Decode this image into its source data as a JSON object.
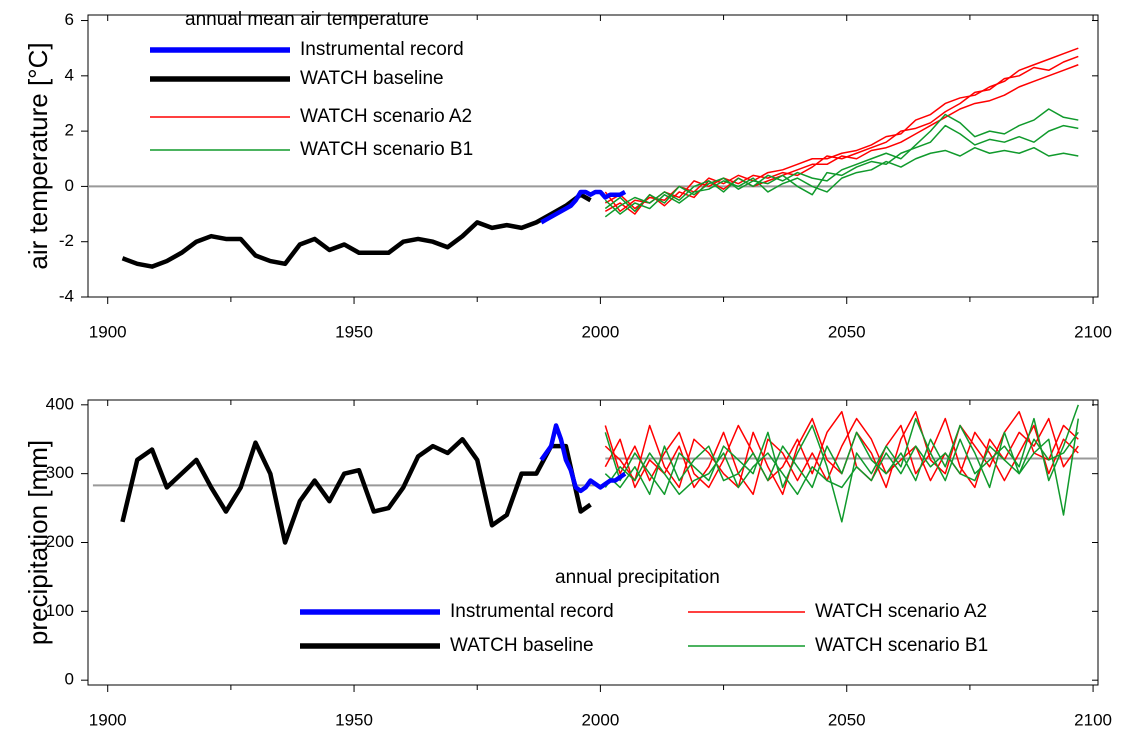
{
  "chart_data": [
    {
      "type": "line",
      "title": "annual mean air temperature",
      "y_label": "air temperature [°C]",
      "xlim": [
        1896,
        2101
      ],
      "xticks": [
        1900,
        1950,
        2000,
        2050,
        2100
      ],
      "xminor": [
        1925,
        1975,
        2025,
        2075
      ],
      "ylim": [
        -4,
        6.2
      ],
      "yticks": [
        -4,
        -2,
        0,
        2,
        4,
        6
      ],
      "legend": "upper left",
      "hlines": [
        {
          "value": 0,
          "xrange": [
            1896,
            2101
          ]
        }
      ],
      "series": [
        {
          "name": "Instrumental record",
          "color": "#0000ff",
          "x": [
            1988,
            1989,
            1990,
            1991,
            1992,
            1993,
            1994,
            1995,
            1996,
            1997,
            1998,
            1999,
            2000,
            2001,
            2002,
            2003,
            2004,
            2005
          ],
          "values": [
            -1.3,
            -1.2,
            -1.1,
            -1.0,
            -0.9,
            -0.8,
            -0.7,
            -0.5,
            -0.2,
            -0.2,
            -0.3,
            -0.2,
            -0.2,
            -0.4,
            -0.3,
            -0.3,
            -0.3,
            -0.2
          ]
        },
        {
          "name": "WATCH baseline",
          "color": "#000000",
          "x": [
            1903,
            1906,
            1909,
            1912,
            1915,
            1918,
            1921,
            1924,
            1927,
            1930,
            1933,
            1936,
            1939,
            1942,
            1945,
            1948,
            1951,
            1954,
            1957,
            1960,
            1963,
            1966,
            1969,
            1972,
            1975,
            1978,
            1981,
            1984,
            1987,
            1990,
            1993,
            1996,
            1998
          ],
          "values": [
            -2.6,
            -2.8,
            -2.9,
            -2.7,
            -2.4,
            -2.0,
            -1.8,
            -1.9,
            -1.9,
            -2.5,
            -2.7,
            -2.8,
            -2.1,
            -1.9,
            -2.3,
            -2.1,
            -2.4,
            -2.4,
            -2.4,
            -2.0,
            -1.9,
            -2.0,
            -2.2,
            -1.8,
            -1.3,
            -1.5,
            -1.4,
            -1.5,
            -1.3,
            -1.0,
            -0.7,
            -0.3,
            -0.5
          ]
        },
        {
          "name": "WATCH scenario A2",
          "color": "#ff0000",
          "x": [
            2001,
            2004,
            2007,
            2010,
            2013,
            2016,
            2019,
            2022,
            2025,
            2028,
            2031,
            2034,
            2037,
            2040,
            2043,
            2046,
            2049,
            2052,
            2055,
            2058,
            2061,
            2064,
            2067,
            2070,
            2073,
            2076,
            2079,
            2082,
            2085,
            2088,
            2091,
            2094,
            2097
          ],
          "runs": [
            [
              -0.6,
              -0.3,
              -0.8,
              -0.4,
              -0.5,
              0.0,
              -0.2,
              0.3,
              0.1,
              0.4,
              0.2,
              0.5,
              0.6,
              0.8,
              1.0,
              1.0,
              1.2,
              1.3,
              1.5,
              1.8,
              1.9,
              2.4,
              2.6,
              3.0,
              3.2,
              3.3,
              3.6,
              3.8,
              4.2,
              4.4,
              4.6,
              4.8,
              5.0
            ],
            [
              -0.2,
              -0.9,
              -0.5,
              -0.6,
              -0.2,
              -0.4,
              0.2,
              0.0,
              0.3,
              0.1,
              0.4,
              0.3,
              0.5,
              0.4,
              0.7,
              1.1,
              1.0,
              1.2,
              1.4,
              1.6,
              2.0,
              2.1,
              2.3,
              2.7,
              3.0,
              3.4,
              3.5,
              3.9,
              4.0,
              4.3,
              4.2,
              4.5,
              4.7
            ],
            [
              -0.9,
              -0.6,
              -1.0,
              -0.3,
              -0.7,
              -0.2,
              -0.4,
              0.2,
              -0.1,
              0.3,
              0.0,
              0.2,
              0.4,
              0.6,
              0.8,
              0.8,
              1.1,
              1.0,
              1.3,
              1.4,
              1.6,
              1.9,
              2.2,
              2.5,
              2.8,
              3.0,
              3.1,
              3.3,
              3.6,
              3.8,
              4.0,
              4.2,
              4.4
            ]
          ]
        },
        {
          "name": "WATCH scenario B1",
          "color": "#109a2c",
          "x": [
            2001,
            2004,
            2007,
            2010,
            2013,
            2016,
            2019,
            2022,
            2025,
            2028,
            2031,
            2034,
            2037,
            2040,
            2043,
            2046,
            2049,
            2052,
            2055,
            2058,
            2061,
            2064,
            2067,
            2070,
            2073,
            2076,
            2079,
            2082,
            2085,
            2088,
            2091,
            2094,
            2097
          ],
          "runs": [
            [
              -1.1,
              -0.7,
              -0.4,
              -0.6,
              -0.2,
              -0.5,
              0.0,
              0.2,
              -0.2,
              0.3,
              0.0,
              0.4,
              0.2,
              0.5,
              0.3,
              0.2,
              0.6,
              0.8,
              1.0,
              1.2,
              1.0,
              1.5,
              2.0,
              2.6,
              2.3,
              1.8,
              2.0,
              1.9,
              2.2,
              2.4,
              2.8,
              2.5,
              2.4
            ],
            [
              -0.8,
              -0.4,
              -0.9,
              -0.3,
              -0.6,
              0.0,
              -0.3,
              0.1,
              0.3,
              -0.1,
              0.2,
              0.1,
              0.4,
              0.0,
              -0.3,
              0.5,
              0.4,
              0.7,
              0.9,
              0.8,
              1.2,
              1.4,
              1.6,
              2.2,
              1.9,
              1.5,
              1.7,
              1.6,
              1.8,
              1.6,
              2.0,
              2.2,
              2.1
            ],
            [
              -0.5,
              -1.0,
              -0.6,
              -0.8,
              -0.3,
              -0.6,
              -0.2,
              -0.1,
              0.2,
              0.0,
              0.3,
              -0.2,
              0.1,
              0.3,
              0.0,
              -0.2,
              0.3,
              0.5,
              0.6,
              0.9,
              0.7,
              1.0,
              1.2,
              1.3,
              1.1,
              1.4,
              1.2,
              1.3,
              1.2,
              1.4,
              1.1,
              1.2,
              1.1
            ]
          ]
        }
      ]
    },
    {
      "type": "line",
      "title": "annual precipitation",
      "y_label": "precipitation [mm]",
      "xlim": [
        1896,
        2101
      ],
      "xticks": [
        1900,
        1950,
        2000,
        2050,
        2100
      ],
      "xminor": [
        1925,
        1975,
        2025,
        2075
      ],
      "ylim": [
        -7,
        407
      ],
      "yticks": [
        0,
        100,
        200,
        300,
        400
      ],
      "legend": "lower center",
      "hlines": [
        {
          "value": 283,
          "xrange": [
            1897,
            2001
          ]
        },
        {
          "value": 322,
          "xrange": [
            2001,
            2101
          ]
        }
      ],
      "series": [
        {
          "name": "Instrumental record",
          "color": "#0000ff",
          "x": [
            1988,
            1989,
            1990,
            1991,
            1992,
            1993,
            1994,
            1995,
            1996,
            1997,
            1998,
            1999,
            2000,
            2001,
            2002,
            2003,
            2004,
            2005
          ],
          "values": [
            320,
            330,
            340,
            370,
            350,
            320,
            305,
            280,
            275,
            280,
            290,
            285,
            280,
            285,
            290,
            290,
            295,
            300
          ]
        },
        {
          "name": "WATCH baseline",
          "color": "#000000",
          "x": [
            1903,
            1906,
            1909,
            1912,
            1915,
            1918,
            1921,
            1924,
            1927,
            1930,
            1933,
            1936,
            1939,
            1942,
            1945,
            1948,
            1951,
            1954,
            1957,
            1960,
            1963,
            1966,
            1969,
            1972,
            1975,
            1978,
            1981,
            1984,
            1987,
            1990,
            1993,
            1996,
            1998
          ],
          "values": [
            230,
            320,
            335,
            280,
            300,
            320,
            280,
            245,
            280,
            345,
            300,
            200,
            260,
            290,
            260,
            300,
            305,
            245,
            250,
            280,
            325,
            340,
            330,
            350,
            320,
            225,
            240,
            300,
            300,
            340,
            340,
            245,
            255
          ]
        },
        {
          "name": "WATCH scenario A2",
          "color": "#ff0000",
          "x": [
            2001,
            2004,
            2007,
            2010,
            2013,
            2016,
            2019,
            2022,
            2025,
            2028,
            2031,
            2034,
            2037,
            2040,
            2043,
            2046,
            2049,
            2052,
            2055,
            2058,
            2061,
            2064,
            2067,
            2070,
            2073,
            2076,
            2079,
            2082,
            2085,
            2088,
            2091,
            2094,
            2097
          ],
          "runs": [
            [
              340,
              320,
              290,
              370,
              310,
              280,
              350,
              330,
              300,
              280,
              360,
              310,
              270,
              340,
              380,
              320,
              300,
              360,
              330,
              280,
              350,
              390,
              320,
              300,
              370,
              340,
              310,
              360,
              390,
              330,
              320,
              370,
              350
            ],
            [
              370,
              300,
              340,
              290,
              330,
              360,
              300,
              280,
              320,
              370,
              330,
              290,
              310,
              350,
              300,
              360,
              390,
              310,
              290,
              340,
              370,
              300,
              330,
              380,
              310,
              280,
              350,
              320,
              360,
              340,
              380,
              310,
              340
            ],
            [
              310,
              350,
              280,
              320,
              300,
              340,
              280,
              310,
              360,
              300,
              270,
              350,
              330,
              290,
              330,
              290,
              340,
              380,
              350,
              300,
              320,
              340,
              290,
              330,
              300,
              360,
              330,
              290,
              330,
              370,
              300,
              350,
              330
            ]
          ]
        },
        {
          "name": "WATCH scenario B1",
          "color": "#109a2c",
          "x": [
            2001,
            2004,
            2007,
            2010,
            2013,
            2016,
            2019,
            2022,
            2025,
            2028,
            2031,
            2034,
            2037,
            2040,
            2043,
            2046,
            2049,
            2052,
            2055,
            2058,
            2061,
            2064,
            2067,
            2070,
            2073,
            2076,
            2079,
            2082,
            2085,
            2088,
            2091,
            2094,
            2097
          ],
          "runs": [
            [
              360,
              290,
              330,
              300,
              270,
              330,
              310,
              290,
              340,
              320,
              300,
              360,
              280,
              330,
              370,
              310,
              230,
              330,
              300,
              340,
              310,
              380,
              330,
              290,
              350,
              300,
              320,
              340,
              310,
              380,
              290,
              340,
              400
            ],
            [
              300,
              280,
              310,
              270,
              340,
              290,
              320,
              340,
              290,
              300,
              330,
              290,
              340,
              310,
              280,
              340,
              300,
              360,
              320,
              300,
              330,
              290,
              350,
              310,
              370,
              330,
              280,
              360,
              300,
              330,
              350,
              240,
              380
            ],
            [
              280,
              310,
              290,
              330,
              300,
              270,
              290,
              300,
              330,
              280,
              310,
              330,
              300,
              270,
              310,
              290,
              280,
              310,
              290,
              330,
              300,
              340,
              310,
              330,
              300,
              290,
              340,
              320,
              300,
              350,
              320,
              330,
              360
            ]
          ]
        }
      ]
    }
  ]
}
